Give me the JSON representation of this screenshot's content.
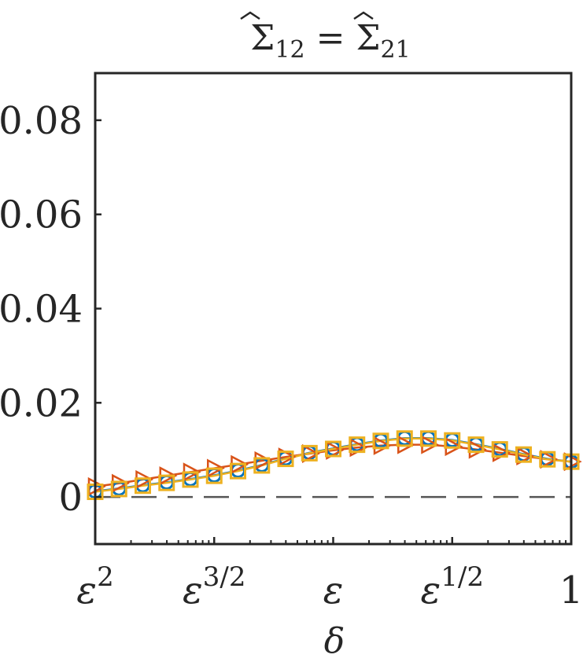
{
  "chart_data": {
    "type": "line",
    "title": "Σ̂12 = Σ̂21",
    "title_parts": {
      "symbol": "Σ",
      "sub_left": "12",
      "equals": "=",
      "sub_right": "21"
    },
    "xlabel": "δ",
    "ylabel": "",
    "x_scale": "log",
    "x_ticks": [
      {
        "pos": 0,
        "base": "ε",
        "exp": "2"
      },
      {
        "pos": 1,
        "base": "ε",
        "exp": "3/2"
      },
      {
        "pos": 2,
        "base": "ε",
        "exp": ""
      },
      {
        "pos": 3,
        "base": "ε",
        "exp": "1/2"
      },
      {
        "pos": 4,
        "base": "1",
        "exp": ""
      }
    ],
    "xlim": [
      0,
      4
    ],
    "ylim": [
      -0.01,
      0.09
    ],
    "y_ticks": [
      0,
      0.02,
      0.04,
      0.06,
      0.08
    ],
    "y_tick_labels": [
      "0",
      "0.02",
      "0.04",
      "0.06",
      "0.08"
    ],
    "grid": false,
    "reference_line": {
      "y": 0,
      "style": "dashed",
      "color": "#555555"
    },
    "series": [
      {
        "marker": "circle",
        "color": "#0072BD",
        "x": [
          0,
          0.2,
          0.4,
          0.6,
          0.8,
          1.0,
          1.2,
          1.4,
          1.6,
          1.8,
          2.0,
          2.2,
          2.4,
          2.6,
          2.8,
          3.0,
          3.2,
          3.4,
          3.6,
          3.8,
          4.0
        ],
        "values": [
          0.0012,
          0.0018,
          0.0025,
          0.0031,
          0.0038,
          0.0046,
          0.0056,
          0.0068,
          0.0082,
          0.0094,
          0.0103,
          0.0112,
          0.012,
          0.0125,
          0.0125,
          0.0121,
          0.0112,
          0.0102,
          0.0091,
          0.0081,
          0.0075
        ]
      },
      {
        "marker": "triangle-right",
        "color": "#D95319",
        "x": [
          0,
          0.2,
          0.4,
          0.6,
          0.8,
          1.0,
          1.2,
          1.4,
          1.6,
          1.8,
          2.0,
          2.2,
          2.4,
          2.6,
          2.8,
          3.0,
          3.2,
          3.4,
          3.6,
          3.8,
          4.0
        ],
        "values": [
          0.0022,
          0.0029,
          0.0037,
          0.0045,
          0.0053,
          0.0061,
          0.0069,
          0.0077,
          0.0085,
          0.0092,
          0.0099,
          0.0105,
          0.0109,
          0.0111,
          0.0111,
          0.0107,
          0.0101,
          0.0094,
          0.0087,
          0.008,
          0.0075
        ]
      },
      {
        "marker": "square",
        "color": "#EDB120",
        "x": [
          0,
          0.2,
          0.4,
          0.6,
          0.8,
          1.0,
          1.2,
          1.4,
          1.6,
          1.8,
          2.0,
          2.2,
          2.4,
          2.6,
          2.8,
          3.0,
          3.2,
          3.4,
          3.6,
          3.8,
          4.0
        ],
        "values": [
          0.0011,
          0.0017,
          0.0024,
          0.003,
          0.0037,
          0.0045,
          0.0055,
          0.0067,
          0.0081,
          0.0093,
          0.0102,
          0.0111,
          0.0119,
          0.0124,
          0.0124,
          0.012,
          0.0111,
          0.0101,
          0.009,
          0.008,
          0.0075
        ]
      }
    ]
  }
}
